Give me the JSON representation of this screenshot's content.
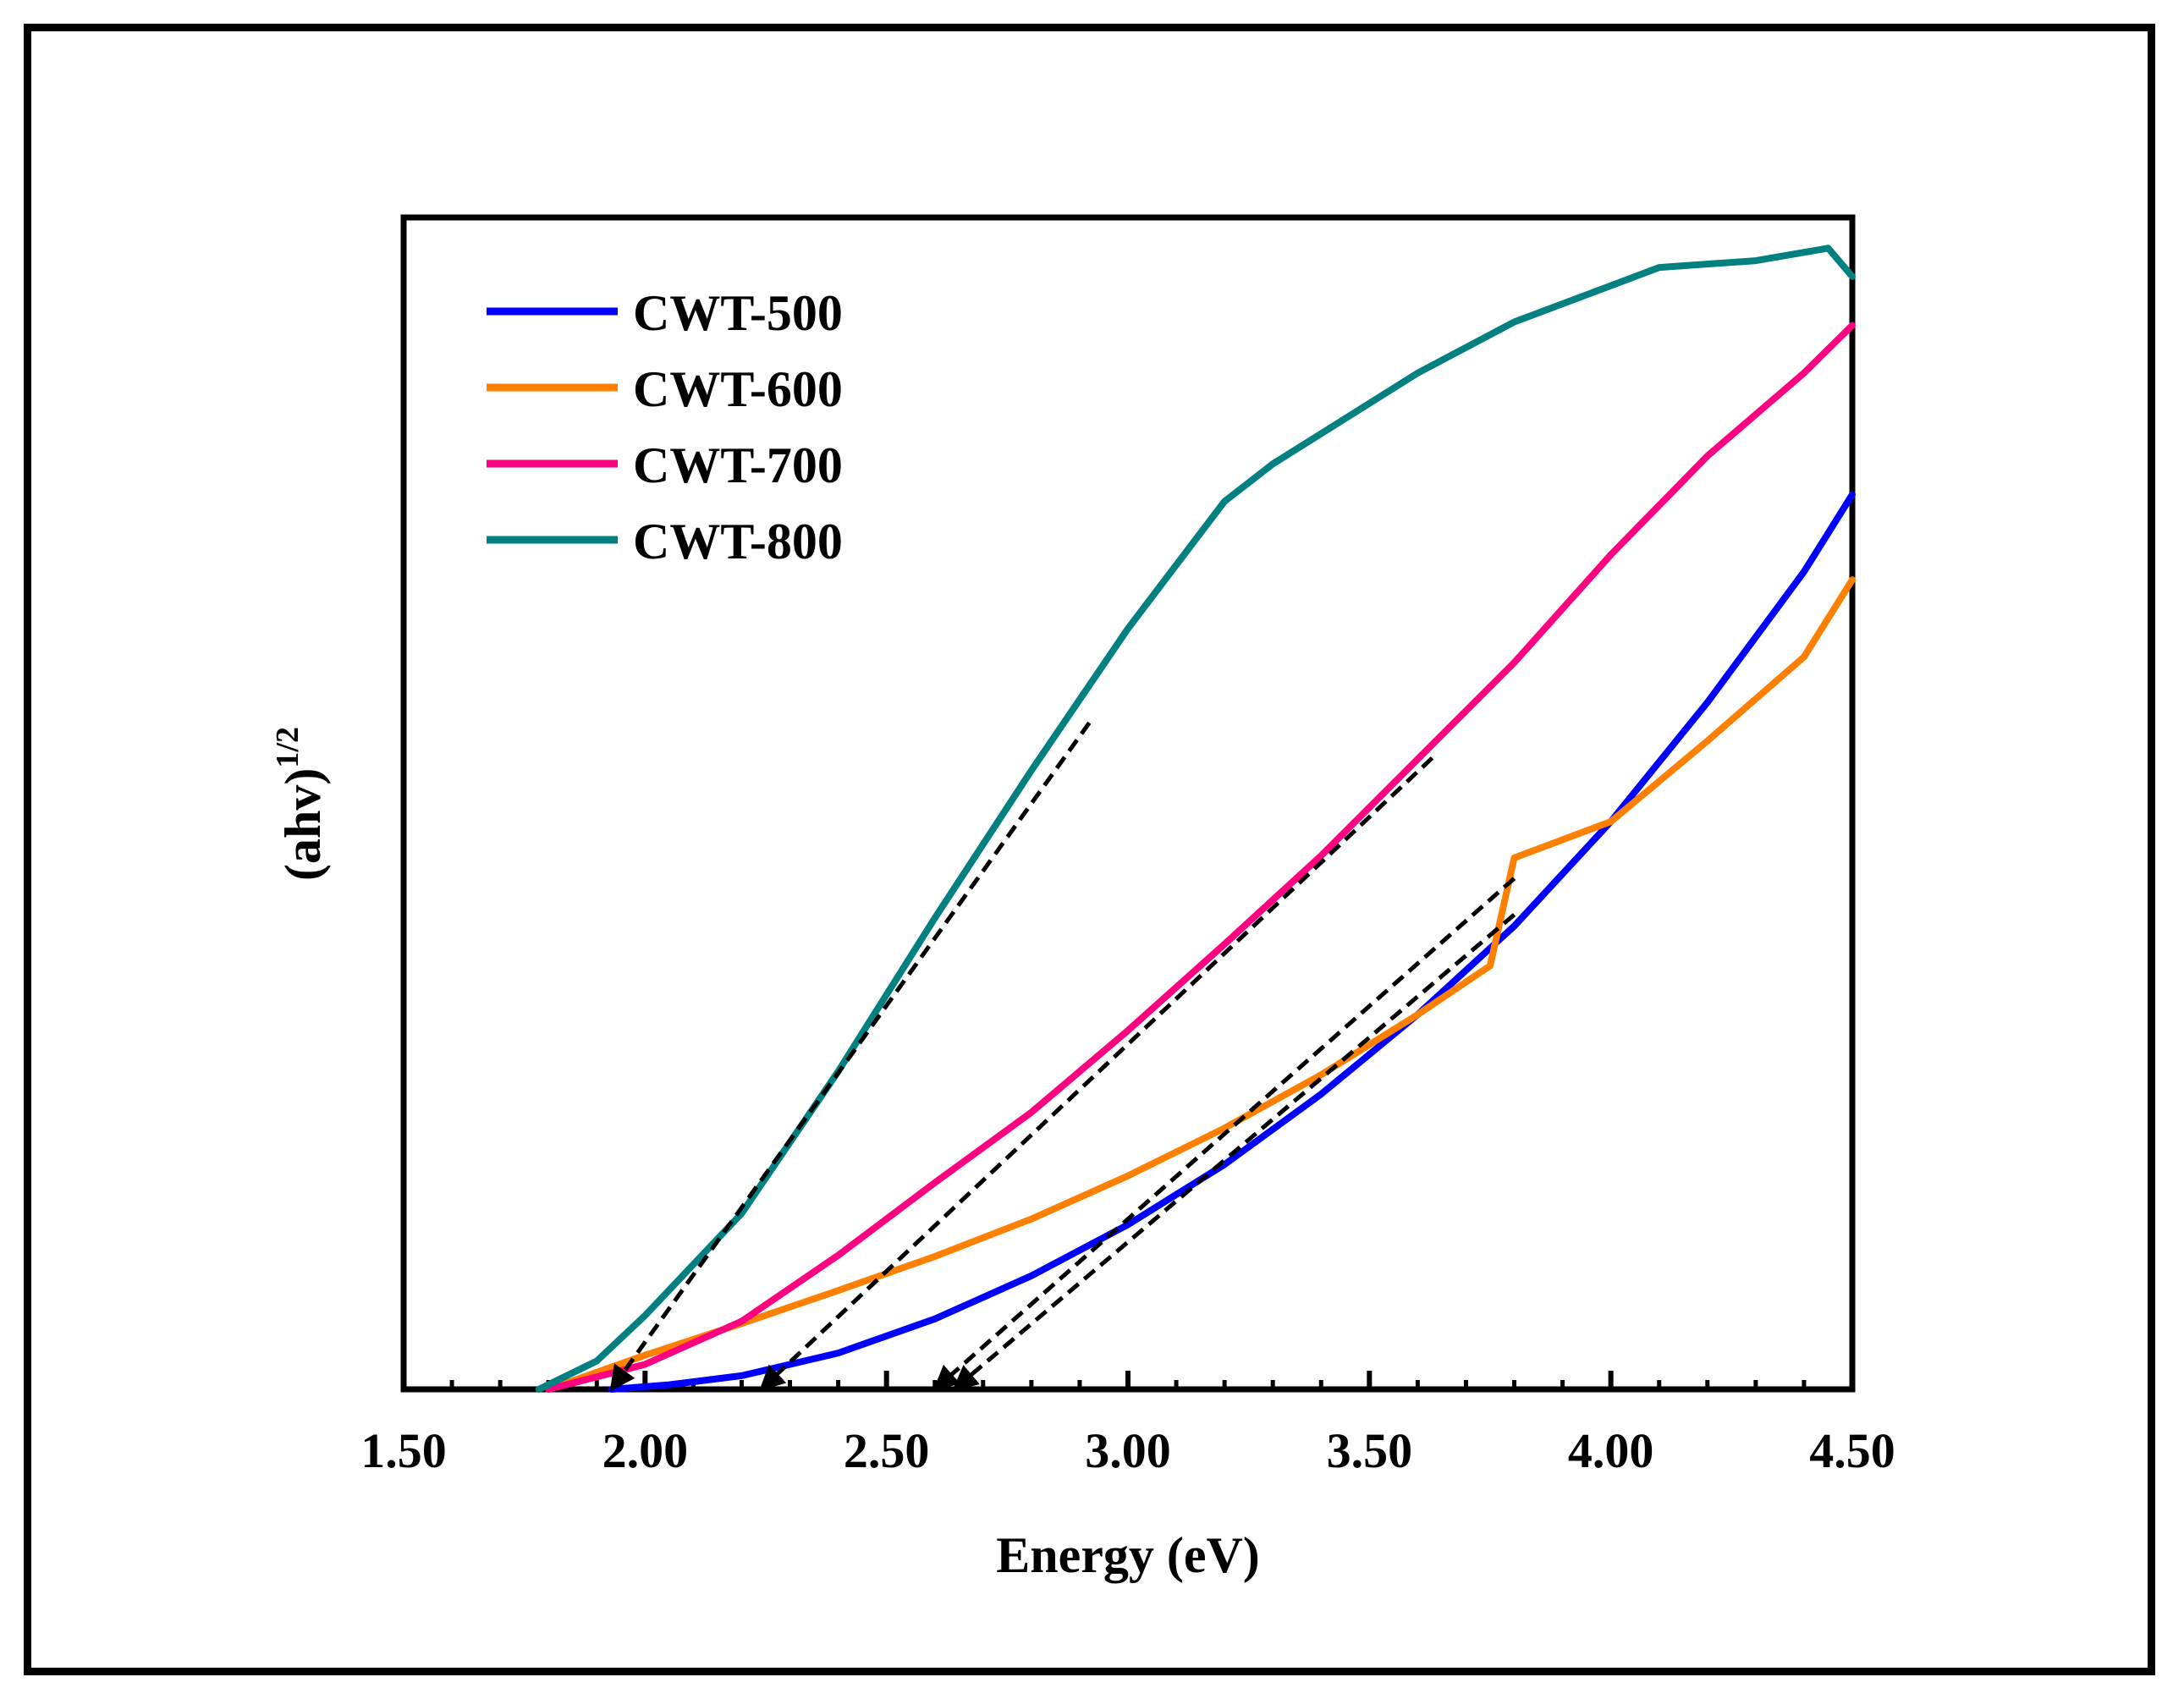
{
  "chart_data": {
    "type": "line",
    "title": "",
    "xlabel": "Energy (eV)",
    "ylabel": "(ahv)",
    "ylabel_superscript": "1/2",
    "xlim": [
      1.5,
      4.5
    ],
    "ylim": [
      0,
      1
    ],
    "x_ticks": [
      "1.50",
      "2.00",
      "2.50",
      "3.00",
      "3.50",
      "4.00",
      "4.50"
    ],
    "y_ticks": [],
    "grid": false,
    "legend_position": "top-left",
    "series": [
      {
        "name": "CWT-500",
        "color": "#0000ff",
        "x": [
          1.93,
          2.05,
          2.2,
          2.4,
          2.6,
          2.8,
          3.0,
          3.2,
          3.4,
          3.6,
          3.8,
          4.0,
          4.2,
          4.4,
          4.5
        ],
        "y": [
          0.0,
          0.004,
          0.012,
          0.032,
          0.062,
          0.1,
          0.145,
          0.198,
          0.26,
          0.33,
          0.408,
          0.5,
          0.605,
          0.72,
          0.788
        ]
      },
      {
        "name": "CWT-600",
        "color": "#ff8000",
        "x": [
          1.8,
          2.0,
          2.2,
          2.4,
          2.6,
          2.8,
          3.0,
          3.2,
          3.4,
          3.6,
          3.75,
          3.8,
          4.0,
          4.2,
          4.4,
          4.5
        ],
        "y": [
          0.0,
          0.03,
          0.058,
          0.087,
          0.117,
          0.15,
          0.188,
          0.23,
          0.277,
          0.33,
          0.373,
          0.468,
          0.5,
          0.571,
          0.645,
          0.713
        ]
      },
      {
        "name": "CWT-700",
        "color": "#ff0080",
        "x": [
          1.8,
          2.0,
          2.2,
          2.4,
          2.6,
          2.8,
          3.0,
          3.2,
          3.4,
          3.6,
          3.8,
          4.0,
          4.2,
          4.4,
          4.5
        ],
        "y": [
          0.0,
          0.022,
          0.06,
          0.118,
          0.182,
          0.244,
          0.316,
          0.392,
          0.47,
          0.555,
          0.64,
          0.735,
          0.822,
          0.895,
          0.937
        ]
      },
      {
        "name": "CWT-800",
        "color": "#008080",
        "x": [
          1.78,
          1.9,
          2.0,
          2.2,
          2.4,
          2.6,
          2.8,
          3.0,
          3.2,
          3.3,
          3.6,
          3.8,
          4.0,
          4.1,
          4.3,
          4.45,
          4.5
        ],
        "y": [
          0.0,
          0.025,
          0.065,
          0.155,
          0.28,
          0.415,
          0.545,
          0.67,
          0.782,
          0.815,
          0.895,
          0.94,
          0.972,
          0.988,
          0.994,
          1.005,
          0.98
        ]
      }
    ],
    "tangent_lines": [
      {
        "name": "tangent-CWT-800",
        "x": [
          1.93,
          2.92
        ],
        "y": [
          0.0,
          0.587
        ]
      },
      {
        "name": "tangent-CWT-700",
        "x": [
          2.24,
          3.63
        ],
        "y": [
          0.0,
          0.556
        ]
      },
      {
        "name": "tangent-CWT-600",
        "x": [
          2.6,
          3.8
        ],
        "y": [
          0.0,
          0.45
        ]
      },
      {
        "name": "tangent-CWT-500",
        "x": [
          2.64,
          3.8
        ],
        "y": [
          0.0,
          0.418
        ]
      }
    ]
  }
}
